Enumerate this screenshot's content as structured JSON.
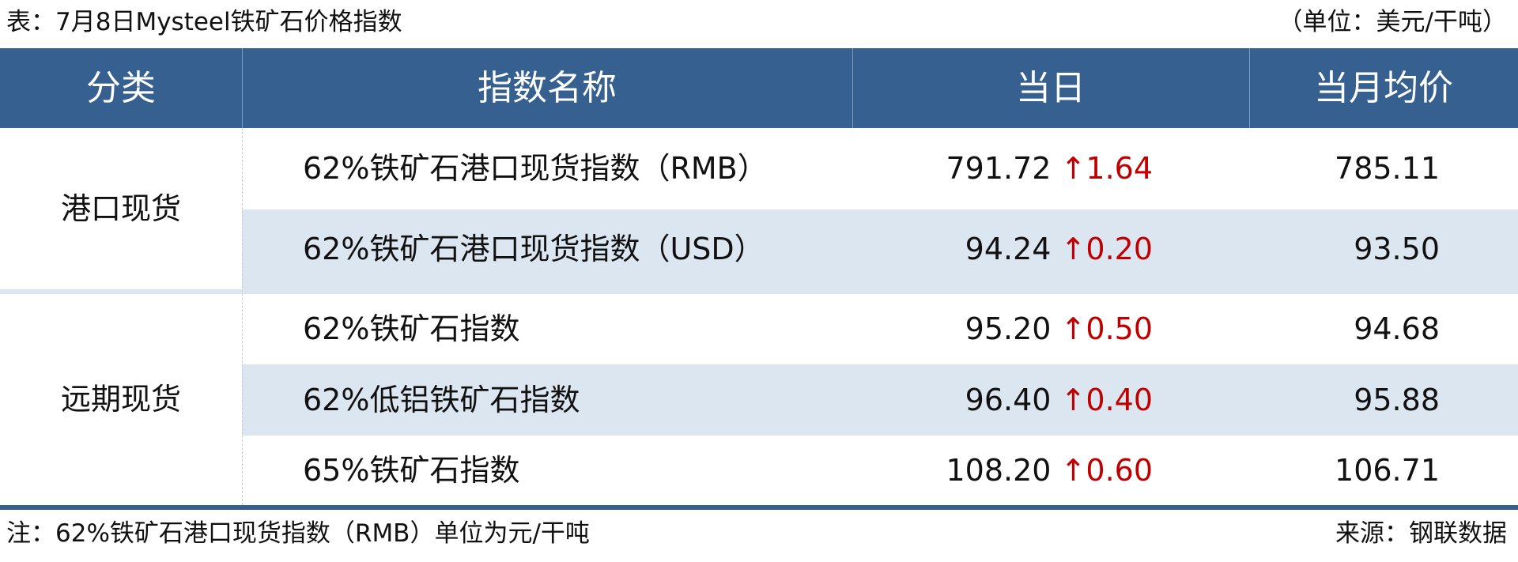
{
  "title": "表：7月8日Mysteel铁矿石价格指数",
  "unit": "（单位：美元/干吨）",
  "headers": [
    "分类",
    "指数名称",
    "当日",
    "当月均价"
  ],
  "colors": {
    "header_bg": "#36608f",
    "alt_row": "#dce6f1",
    "up": "#c00000"
  },
  "categories": [
    "港口现货",
    "远期现货"
  ],
  "rows": [
    {
      "name": "62%铁矿石港口现货指数（RMB）",
      "value": "791.72",
      "arrow": "↑",
      "change": "1.64",
      "avg": "785.11"
    },
    {
      "name": "62%铁矿石港口现货指数（USD）",
      "value": "94.24",
      "arrow": "↑",
      "change": "0.20",
      "avg": "93.50"
    },
    {
      "name": "62%铁矿石指数",
      "value": "95.20",
      "arrow": "↑",
      "change": "0.50",
      "avg": "94.68"
    },
    {
      "name": "62%低铝铁矿石指数",
      "value": "96.40",
      "arrow": "↑",
      "change": "0.40",
      "avg": "95.88"
    },
    {
      "name": "65%铁矿石指数",
      "value": "108.20",
      "arrow": "↑",
      "change": "0.60",
      "avg": "106.71"
    }
  ],
  "note": "注：62%铁矿石港口现货指数（RMB）单位为元/干吨",
  "source": "来源：钢联数据"
}
